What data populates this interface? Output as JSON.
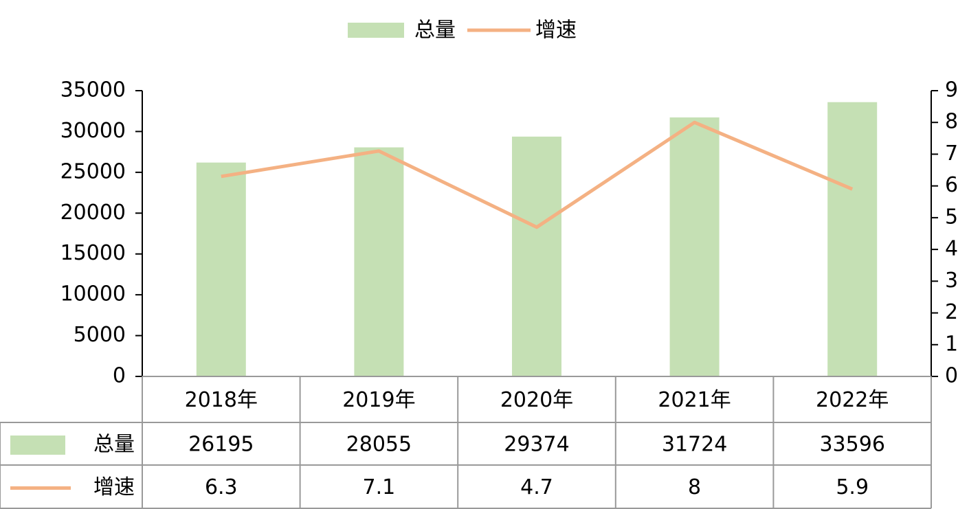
{
  "chart_data": {
    "type": "bar",
    "categories": [
      "2018年",
      "2019年",
      "2020年",
      "2021年",
      "2022年"
    ],
    "series": [
      {
        "name": "总量",
        "type": "bar",
        "color": "#c5e0b4",
        "values": [
          26195,
          28055,
          29374,
          31724,
          33596
        ]
      },
      {
        "name": "增速",
        "type": "line",
        "axis": "y2",
        "color": "#f4b183",
        "values": [
          6.3,
          7.1,
          4.7,
          8,
          5.9
        ]
      }
    ],
    "ylim": [
      0,
      35000
    ],
    "yticks": [
      0,
      5000,
      10000,
      15000,
      20000,
      25000,
      30000,
      35000
    ],
    "y2lim": [
      0,
      9
    ],
    "y2ticks": [
      0,
      1,
      2,
      3,
      4,
      5,
      6,
      7,
      8,
      9
    ],
    "legend": "top",
    "data_table": true
  }
}
